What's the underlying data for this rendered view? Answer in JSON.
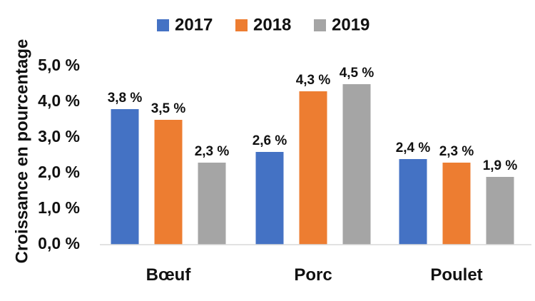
{
  "chart_data": {
    "type": "bar",
    "title": "",
    "xlabel": "",
    "ylabel": "Croissance en pourcentage",
    "ylim": [
      0,
      5
    ],
    "yticks": [
      0,
      1,
      2,
      3,
      4,
      5
    ],
    "ytick_labels": [
      "0,0 %",
      "1,0 %",
      "2,0 %",
      "3,0 %",
      "4,0 %",
      "5,0 %"
    ],
    "grid": false,
    "legend_position": "top-center",
    "categories": [
      "Bœuf",
      "Porc",
      "Poulet"
    ],
    "series": [
      {
        "name": "2017",
        "color": "#4472C4",
        "values": [
          3.8,
          2.6,
          2.4
        ],
        "labels": [
          "3,8 %",
          "2,6 %",
          "2,4 %"
        ]
      },
      {
        "name": "2018",
        "color": "#ED7D31",
        "values": [
          3.5,
          4.3,
          2.3
        ],
        "labels": [
          "3,5 %",
          "4,3 %",
          "2,3 %"
        ]
      },
      {
        "name": "2019",
        "color": "#A5A5A5",
        "values": [
          2.3,
          4.5,
          1.9
        ],
        "labels": [
          "2,3 %",
          "4,5 %",
          "1,9 %"
        ]
      }
    ]
  }
}
